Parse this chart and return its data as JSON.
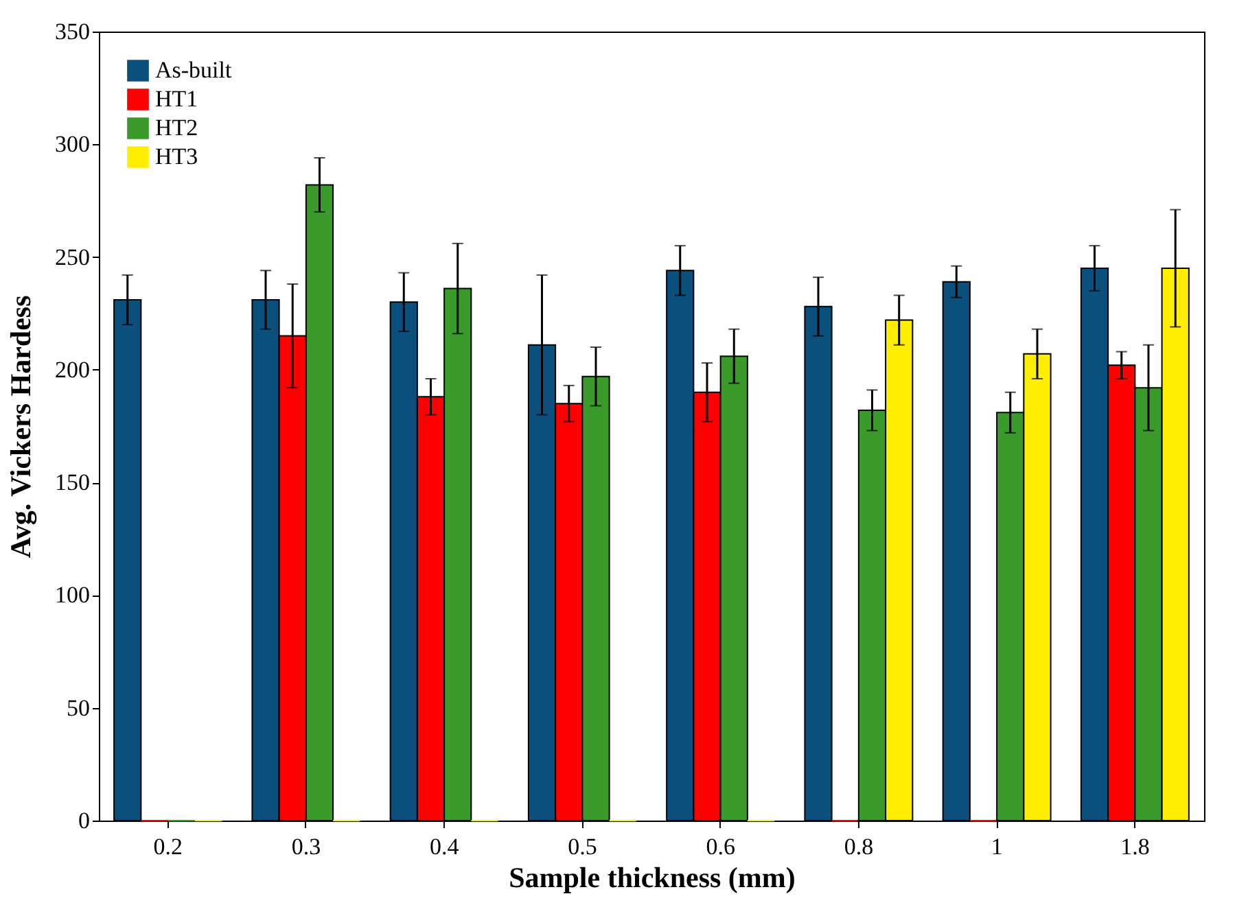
{
  "chart_data": {
    "type": "bar",
    "xlabel": "Sample thickness (mm)",
    "ylabel": "Avg. Vickers Hardess",
    "categories": [
      "0.2",
      "0.3",
      "0.4",
      "0.5",
      "0.6",
      "0.8",
      "1",
      "1.8"
    ],
    "series": [
      {
        "name": "As-built",
        "color": "#0b4f7c",
        "values": [
          231,
          231,
          230,
          211,
          244,
          228,
          239,
          245
        ],
        "errors": [
          11,
          13,
          13,
          31,
          11,
          13,
          7,
          10
        ]
      },
      {
        "name": "HT1",
        "color": "#ff0000",
        "values": [
          0,
          215,
          188,
          185,
          190,
          0,
          0,
          202
        ],
        "errors": [
          null,
          23,
          8,
          8,
          13,
          null,
          null,
          6
        ]
      },
      {
        "name": "HT2",
        "color": "#3a9a2a",
        "values": [
          0,
          282,
          236,
          197,
          206,
          182,
          181,
          192
        ],
        "errors": [
          null,
          12,
          20,
          13,
          12,
          9,
          9,
          19
        ]
      },
      {
        "name": "HT3",
        "color": "#ffee00",
        "values": [
          0,
          0,
          0,
          0,
          0,
          222,
          207,
          245
        ],
        "errors": [
          null,
          null,
          null,
          null,
          null,
          11,
          11,
          26
        ]
      }
    ],
    "ylim": [
      0,
      350
    ],
    "yticks": [
      0,
      50,
      100,
      150,
      200,
      250,
      300,
      350
    ],
    "grid": false,
    "legend": "top left"
  }
}
